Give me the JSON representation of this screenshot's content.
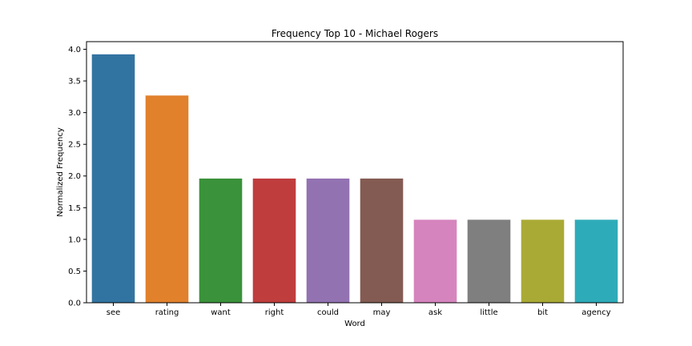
{
  "chart_data": {
    "type": "bar",
    "title": "Frequency Top 10 - Michael Rogers",
    "xlabel": "Word",
    "ylabel": "Normalized Frequency",
    "categories": [
      "see",
      "rating",
      "want",
      "right",
      "could",
      "may",
      "ask",
      "little",
      "bit",
      "agency"
    ],
    "values": [
      3.92,
      3.27,
      1.96,
      1.96,
      1.96,
      1.96,
      1.31,
      1.31,
      1.31,
      1.31
    ],
    "ylim": [
      0,
      4.12
    ],
    "yticks": [
      "0.0",
      "0.5",
      "1.0",
      "1.5",
      "2.0",
      "2.5",
      "3.0",
      "3.5",
      "4.0"
    ],
    "colors": [
      "#3274a1",
      "#e1812c",
      "#3a923a",
      "#c03d3e",
      "#9372b2",
      "#845b53",
      "#d684bd",
      "#7f7f7f",
      "#a9aa35",
      "#2eabb8"
    ],
    "grid": false,
    "legend": "none"
  }
}
